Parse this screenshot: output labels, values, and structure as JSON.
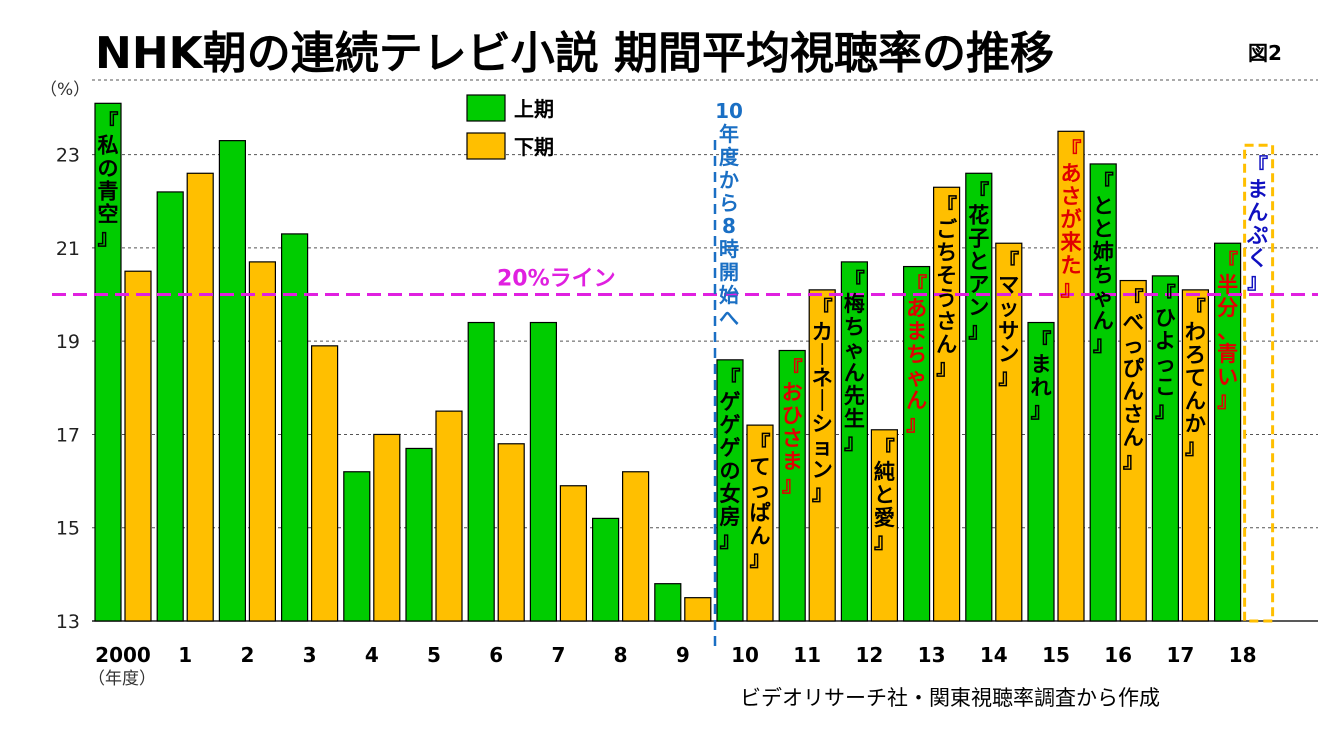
{
  "chart_data": {
    "type": "bar",
    "title": "NHK朝の連続テレビ小説 期間平均視聴率の推移",
    "figure_label": "図2",
    "ylabel": "（%）",
    "xlabel": "（年度）",
    "ylim": [
      13,
      24.6
    ],
    "yticks": [
      13,
      15,
      17,
      19,
      21,
      23
    ],
    "categories": [
      "2000",
      "1",
      "2",
      "3",
      "4",
      "5",
      "6",
      "7",
      "8",
      "9",
      "10",
      "11",
      "12",
      "13",
      "14",
      "15",
      "16",
      "17",
      "18"
    ],
    "series": [
      {
        "name": "上期",
        "color": "#00cc00",
        "values": [
          24.1,
          22.2,
          23.3,
          21.3,
          16.2,
          16.7,
          19.4,
          19.4,
          15.2,
          13.8,
          18.6,
          18.8,
          20.7,
          20.6,
          22.6,
          19.4,
          22.8,
          20.4,
          21.1
        ],
        "titles": [
          "『私の青空』",
          "",
          "",
          "",
          "",
          "",
          "",
          "",
          "",
          "",
          "『ゲゲゲの女房』",
          "『おひさま』",
          "『梅ちゃん先生』",
          "『あまちゃん』",
          "『花子とアン』",
          "『まれ』",
          "『とと姉ちゃん』",
          "『ひよっこ』",
          "『半分、青い』"
        ],
        "title_colors": [
          "#000000",
          "",
          "",
          "",
          "",
          "",
          "",
          "",
          "",
          "",
          "#000000",
          "#e00000",
          "#000000",
          "#e00000",
          "#000000",
          "#000000",
          "#000000",
          "#000000",
          "#e00000"
        ]
      },
      {
        "name": "下期",
        "color": "#ffbf00",
        "values": [
          20.5,
          22.6,
          20.7,
          18.9,
          17.0,
          17.5,
          16.8,
          15.9,
          16.2,
          13.5,
          17.2,
          20.1,
          17.1,
          22.3,
          21.1,
          23.5,
          20.3,
          20.1,
          null
        ],
        "titles": [
          "",
          "",
          "",
          "",
          "",
          "",
          "",
          "",
          "",
          "",
          "『てっぱん』",
          "『カーネーション』",
          "『純と愛』",
          "『ごちそうさん』",
          "『マッサン』",
          "『あさが来た』",
          "『べっぴんさん』",
          "『わろてんか』",
          "『まんぷく』"
        ],
        "title_colors": [
          "",
          "",
          "",
          "",
          "",
          "",
          "",
          "",
          "",
          "",
          "#000000",
          "#000000",
          "#000000",
          "#000000",
          "#000000",
          "#e00000",
          "#000000",
          "#000000",
          "#1010c0"
        ]
      }
    ],
    "legend": {
      "position": "top-left",
      "entries": [
        "上期",
        "下期"
      ]
    },
    "reference_line": {
      "value": 20,
      "label": "20%ライン",
      "color": "#e020e0"
    },
    "annotation": {
      "text": "10年度から8時開始へ",
      "color": "#1a6fc4"
    },
    "source": "ビデオリサーチ社・関東視聴率調査から作成",
    "grid": true
  }
}
